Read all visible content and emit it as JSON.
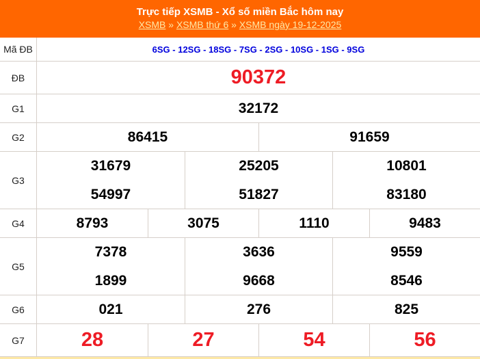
{
  "header": {
    "title": "Trực tiếp XSMB - Xổ số miền Bắc hôm nay",
    "breadcrumb": [
      {
        "label": "XSMB"
      },
      {
        "label": "XSMB thứ 6"
      },
      {
        "label": "XSMB ngày 19-12-2025"
      }
    ],
    "separator": "»"
  },
  "colors": {
    "header": "#ff6600",
    "special": "#ee1c25",
    "code": "#0000dd"
  },
  "madb": {
    "label": "Mã ĐB",
    "value": "6SG - 12SG - 18SG - 7SG - 2SG - 10SG - 1SG - 9SG"
  },
  "prizes": {
    "db": {
      "label": "ĐB",
      "values": [
        "90372"
      ]
    },
    "g1": {
      "label": "G1",
      "values": [
        "32172"
      ]
    },
    "g2": {
      "label": "G2",
      "values": [
        "86415",
        "91659"
      ]
    },
    "g3": {
      "label": "G3",
      "values": [
        "31679",
        "25205",
        "10801",
        "54997",
        "51827",
        "83180"
      ]
    },
    "g4": {
      "label": "G4",
      "values": [
        "8793",
        "3075",
        "1110",
        "9483"
      ]
    },
    "g5": {
      "label": "G5",
      "values": [
        "7378",
        "3636",
        "9559",
        "1899",
        "9668",
        "8546"
      ]
    },
    "g6": {
      "label": "G6",
      "values": [
        "021",
        "276",
        "825"
      ]
    },
    "g7": {
      "label": "G7",
      "values": [
        "28",
        "27",
        "54",
        "56"
      ]
    }
  }
}
